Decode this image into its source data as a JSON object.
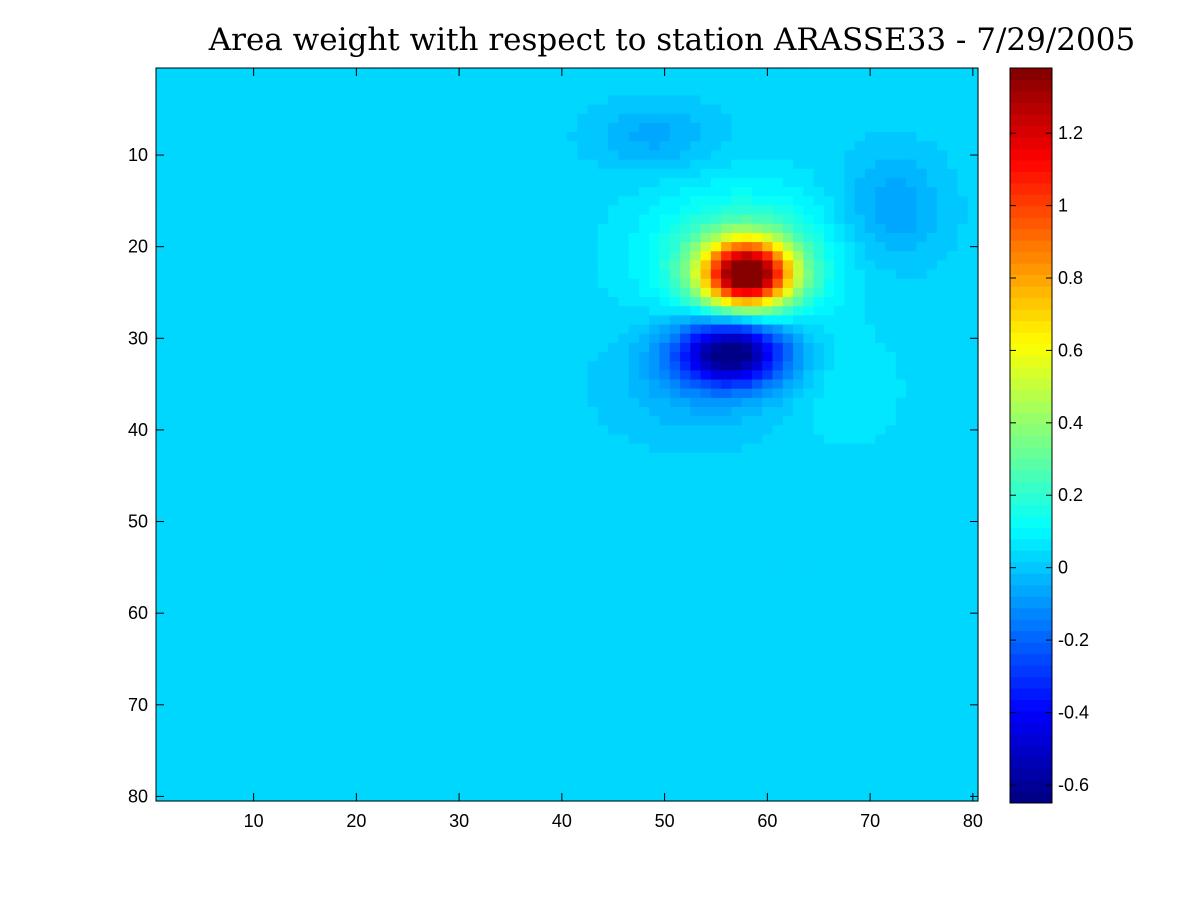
{
  "chart_data": {
    "type": "heatmap",
    "title": "Area weight with respect to station ARASSE33 - 7/29/2005",
    "xlabel": "",
    "ylabel": "",
    "grid": false,
    "colormap": "jet",
    "x_range": [
      0.5,
      80.5
    ],
    "y_range": [
      0.5,
      80.5
    ],
    "y_direction": "top-to-bottom",
    "x_ticks": [
      10,
      20,
      30,
      40,
      50,
      60,
      70,
      80
    ],
    "y_ticks": [
      10,
      20,
      30,
      40,
      50,
      60,
      70,
      80
    ],
    "color_range": [
      -0.65,
      1.38
    ],
    "colorbar": {
      "placement": "right",
      "ticks": [
        -0.6,
        -0.4,
        -0.2,
        0,
        0.2,
        0.4,
        0.6,
        0.8,
        1,
        1.2
      ],
      "tick_labels": [
        "-0.6",
        "-0.4",
        "-0.2",
        "0",
        "0.2",
        "0.4",
        "0.6",
        "0.8",
        "1",
        "1.2"
      ]
    },
    "features": [
      {
        "type": "peak",
        "x": 58,
        "y": 23,
        "value": 1.38
      },
      {
        "type": "trough",
        "x": 56.5,
        "y": 31.5,
        "value": -0.65
      },
      {
        "type": "trough",
        "x": 72,
        "y": 16,
        "value": -0.08
      },
      {
        "type": "trough",
        "x": 49,
        "y": 8,
        "value": -0.06
      },
      {
        "type": "trough",
        "x": 52,
        "y": 40,
        "value": -0.04
      },
      {
        "type": "peak",
        "x": 69,
        "y": 36,
        "value": 0.05
      }
    ],
    "background_value": 0.03
  }
}
